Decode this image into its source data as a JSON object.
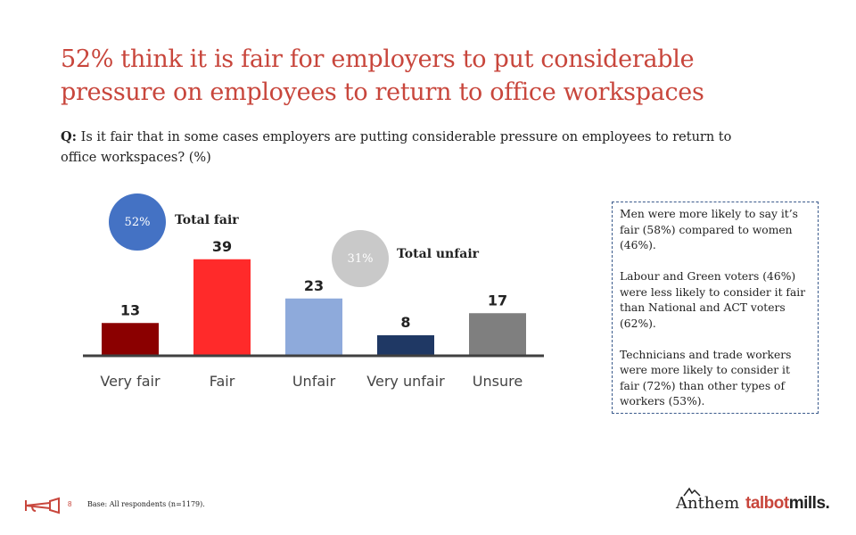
{
  "title": "52% think it is fair for employers to put considerable pressure on employees to return to office workspaces",
  "question": {
    "label": "Q:",
    "text": "Is it fair that in some cases employers are putting considerable pressure on employees to return to office workspaces? (%)"
  },
  "totals": {
    "fair": {
      "value": "52%",
      "label": "Total fair",
      "color": "#4472c4"
    },
    "unfair": {
      "value": "31%",
      "label": "Total unfair",
      "color": "#c9c9c9"
    }
  },
  "chart_data": {
    "type": "bar",
    "categories": [
      "Very fair",
      "Fair",
      "Unfair",
      "Very unfair",
      "Unsure"
    ],
    "values": [
      13,
      39,
      23,
      8,
      17
    ],
    "colors": [
      "#8b0000",
      "#ff2a2a",
      "#8eaadb",
      "#1f3864",
      "#7f7f7f"
    ],
    "title": "",
    "xlabel": "",
    "ylabel": "",
    "ylim": [
      0,
      40
    ],
    "grid": false,
    "data_labels": true
  },
  "notes": [
    "Men were more likely to say it’s fair (58%) compared to women (46%).",
    "Labour and Green voters (46%) were less likely to consider it fair than National and ACT voters (62%).",
    "Technicians and trade workers were more likely to consider it fair (72%) than other types of workers (53%)."
  ],
  "footer": {
    "page_number": "8",
    "base": "Base: All respondents (n=1179)."
  },
  "logos": {
    "anthem": "Anthem",
    "talbot": "talbot",
    "mills": "mills."
  },
  "colors": {
    "accent": "#c8463c",
    "box_border": "#3b5b8c"
  }
}
